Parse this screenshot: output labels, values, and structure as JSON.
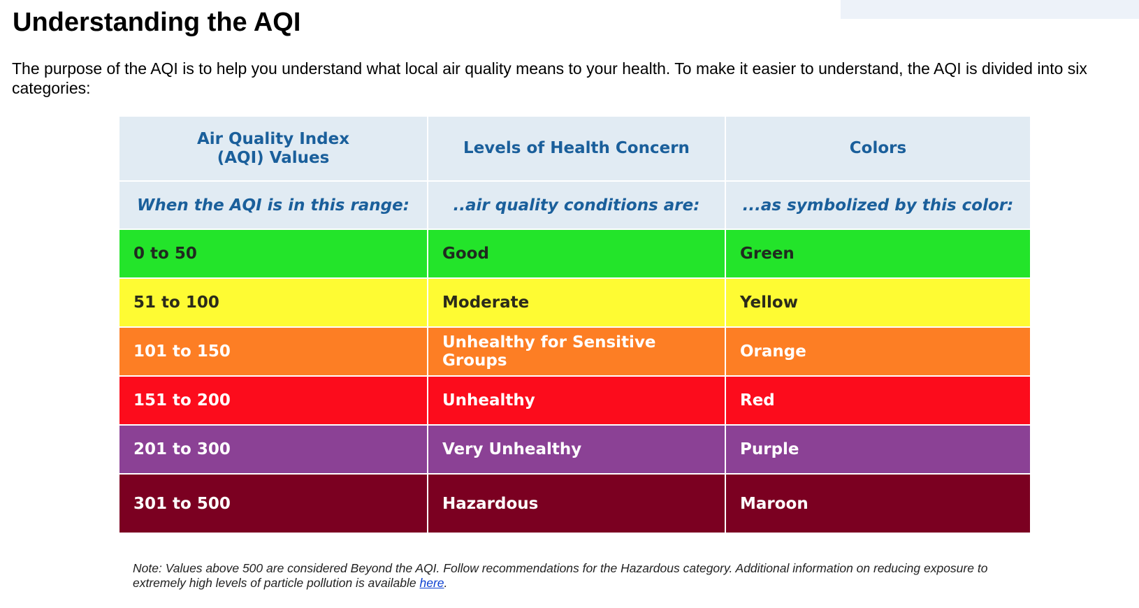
{
  "page": {
    "title": "Understanding the AQI",
    "intro": "The purpose of the AQI is to help you understand what local air quality means to your health. To make it easier to understand, the AQI is divided into six categories:"
  },
  "table": {
    "headers": {
      "col1_line1": "Air Quality Index",
      "col1_line2": "(AQI) Values",
      "col2": "Levels of Health Concern",
      "col3": "Colors"
    },
    "subheaders": {
      "col1": "When the AQI is in this range:",
      "col2": "..air quality conditions are:",
      "col3": "...as symbolized by this color:"
    },
    "header_bg": "#e1ebf3",
    "header_text_color": "#1a5f9b",
    "rows": [
      {
        "range": "0 to 50",
        "level": "Good",
        "color_name": "Green",
        "bg": "#23e42a",
        "text_color": "#1f2a1f"
      },
      {
        "range": "51 to 100",
        "level": "Moderate",
        "color_name": "Yellow",
        "bg": "#fefb33",
        "text_color": "#2b2b1a"
      },
      {
        "range": "101 to 150",
        "level": "Unhealthy for Sensitive Groups",
        "color_name": "Orange",
        "bg": "#fd7e24",
        "text_color": "#ffffff"
      },
      {
        "range": "151 to 200",
        "level": "Unhealthy",
        "color_name": "Red",
        "bg": "#fc0c1c",
        "text_color": "#ffffff"
      },
      {
        "range": "201 to 300",
        "level": "Very Unhealthy",
        "color_name": "Purple",
        "bg": "#8b4195",
        "text_color": "#ffffff"
      },
      {
        "range": "301 to 500",
        "level": "Hazardous",
        "color_name": "Maroon",
        "bg": "#7b0021",
        "text_color": "#ffffff"
      }
    ]
  },
  "note": {
    "text": "Note: Values above 500 are considered Beyond the AQI. Follow recommendations for the Hazardous category. Additional information on reducing exposure to extremely high levels of particle pollution is available ",
    "link_label": "here",
    "suffix": "."
  }
}
